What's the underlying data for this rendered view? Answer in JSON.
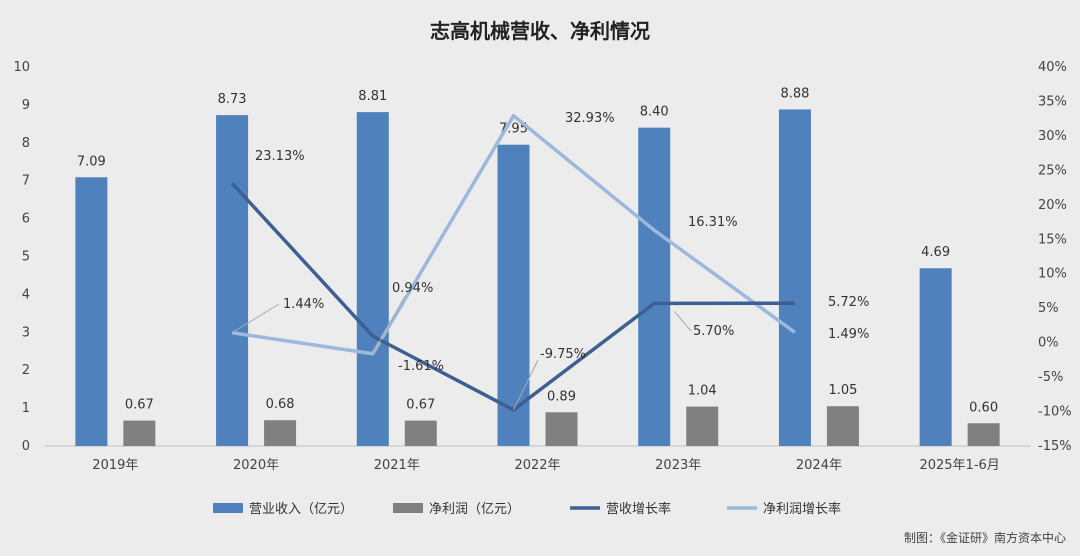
{
  "chart_data": {
    "type": "bar",
    "title": "志高机械营收、净利情况",
    "categories": [
      "2019年",
      "2020年",
      "2021年",
      "2022年",
      "2023年",
      "2024年",
      "2025年1-6月"
    ],
    "ylim_left": [
      0,
      10
    ],
    "yticks_left": [
      "0",
      "1",
      "2",
      "3",
      "4",
      "5",
      "6",
      "7",
      "8",
      "9",
      "10"
    ],
    "ylim_right": [
      -15,
      40
    ],
    "yticks_right": [
      "-15%",
      "-10%",
      "-5%",
      "0%",
      "5%",
      "10%",
      "15%",
      "20%",
      "25%",
      "30%",
      "35%",
      "40%"
    ],
    "grid": false,
    "legend_position": "bottom",
    "series": [
      {
        "name": "营业收入（亿元）",
        "type": "bar",
        "axis": "left",
        "color": "#4f81bd",
        "values": [
          7.09,
          8.73,
          8.81,
          7.95,
          8.4,
          8.88,
          4.69
        ],
        "labels": [
          "7.09",
          "8.73",
          "8.81",
          "7.95",
          "8.40",
          "8.88",
          "4.69"
        ]
      },
      {
        "name": "净利润（亿元）",
        "type": "bar",
        "axis": "left",
        "color": "#808080",
        "values": [
          0.67,
          0.68,
          0.67,
          0.89,
          1.04,
          1.05,
          0.6
        ],
        "labels": [
          "0.67",
          "0.68",
          "0.67",
          "0.89",
          "1.04",
          "1.05",
          "0.60"
        ]
      },
      {
        "name": "营收增长率",
        "type": "line",
        "axis": "right",
        "color": "#3d5f91",
        "values": [
          null,
          23.13,
          0.94,
          -9.75,
          5.7,
          5.72,
          null
        ],
        "labels": [
          null,
          "23.13%",
          "0.94%",
          "-9.75%",
          "5.70%",
          "5.72%",
          null
        ]
      },
      {
        "name": "净利润增长率",
        "type": "line",
        "axis": "right",
        "color": "#9cb8dc",
        "values": [
          null,
          1.44,
          -1.61,
          32.93,
          16.31,
          1.49,
          null
        ],
        "labels": [
          null,
          "1.44%",
          "-1.61%",
          "32.93%",
          "16.31%",
          "1.49%",
          null
        ]
      }
    ]
  },
  "credit": "制图：《金证研》南方资本中心"
}
